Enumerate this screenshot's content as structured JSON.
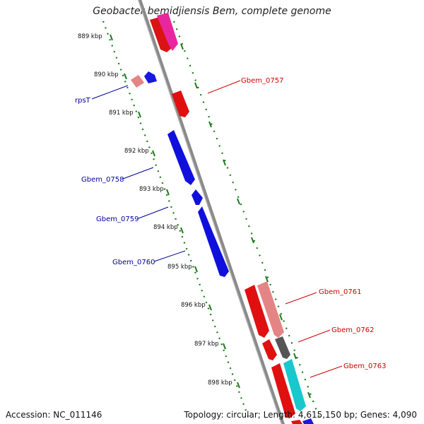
{
  "title": "Geobacter bemidjiensis Bem, complete genome",
  "footer": {
    "accession": "Accession: NC_011146",
    "summary": "Topology: circular; Length: 4,615,150 bp; Genes: 4,090"
  },
  "colors": {
    "backbone": "#808080",
    "tick_dots": "#1a7a1a",
    "forward_label": "#cc0000",
    "reverse_label": "#000099"
  },
  "ticks": [
    "889 kbp",
    "890 kbp",
    "891 kbp",
    "892 kbp",
    "893 kbp",
    "894 kbp",
    "895 kbp",
    "896 kbp",
    "897 kbp",
    "898 kbp"
  ],
  "gene_labels": [
    {
      "name": "Gbem_0757",
      "strand": "forward"
    },
    {
      "name": "rpsT",
      "strand": "reverse"
    },
    {
      "name": "Gbem_0758",
      "strand": "reverse"
    },
    {
      "name": "Gbem_0759",
      "strand": "reverse"
    },
    {
      "name": "Gbem_0760",
      "strand": "reverse"
    },
    {
      "name": "Gbem_0761",
      "strand": "forward"
    },
    {
      "name": "Gbem_0762",
      "strand": "forward"
    },
    {
      "name": "Gbem_0763",
      "strand": "forward"
    }
  ]
}
